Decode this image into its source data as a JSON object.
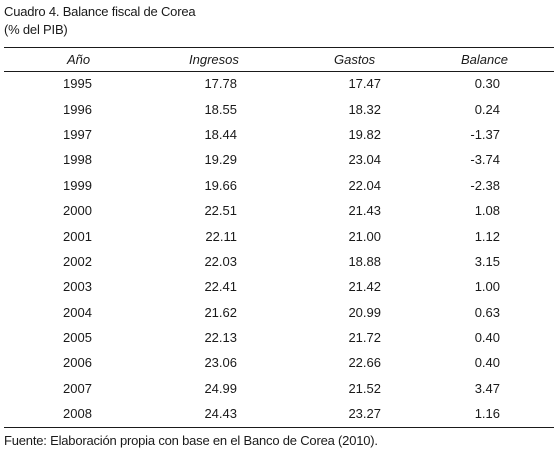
{
  "document": {
    "title": "Cuadro 4. Balance fiscal de Corea",
    "subtitle": "(% del PIB)",
    "source": "Fuente: Elaboración propia con base en el Banco de Corea (2010)."
  },
  "table": {
    "headers": [
      "Año",
      "Ingresos",
      "Gastos",
      "Balance"
    ],
    "rows": [
      [
        "1995",
        "17.78",
        "17.47",
        "0.30"
      ],
      [
        "1996",
        "18.55",
        "18.32",
        "0.24"
      ],
      [
        "1997",
        "18.44",
        "19.82",
        "-1.37"
      ],
      [
        "1998",
        "19.29",
        "23.04",
        "-3.74"
      ],
      [
        "1999",
        "19.66",
        "22.04",
        "-2.38"
      ],
      [
        "2000",
        "22.51",
        "21.43",
        "1.08"
      ],
      [
        "2001",
        "22.11",
        "21.00",
        "1.12"
      ],
      [
        "2002",
        "22.03",
        "18.88",
        "3.15"
      ],
      [
        "2003",
        "22.41",
        "21.42",
        "1.00"
      ],
      [
        "2004",
        "21.62",
        "20.99",
        "0.63"
      ],
      [
        "2005",
        "22.13",
        "21.72",
        "0.40"
      ],
      [
        "2006",
        "23.06",
        "22.66",
        "0.40"
      ],
      [
        "2007",
        "24.99",
        "21.52",
        "3.47"
      ],
      [
        "2008",
        "24.43",
        "23.27",
        "1.16"
      ]
    ]
  }
}
